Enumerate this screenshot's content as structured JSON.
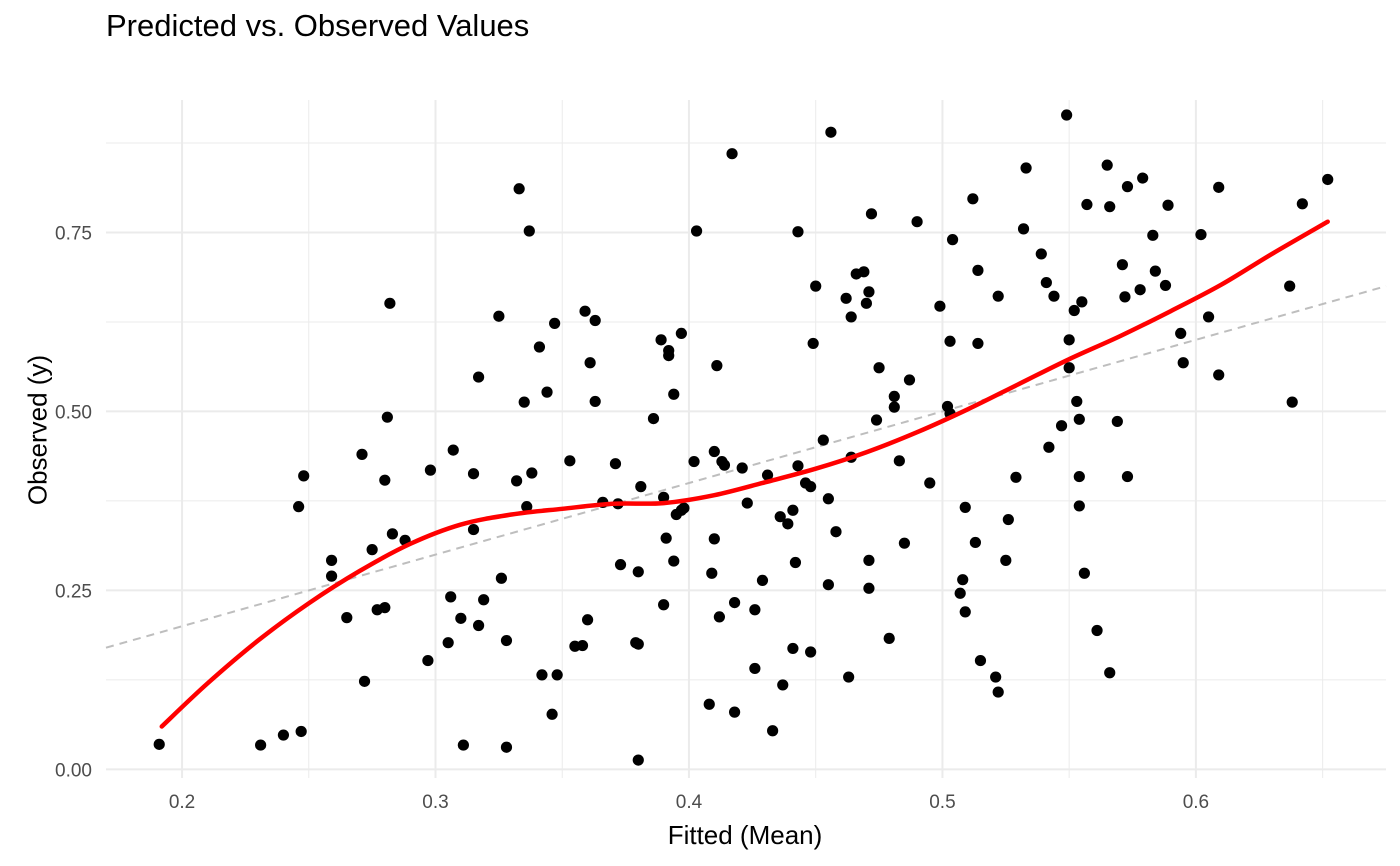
{
  "chart_data": {
    "type": "scatter",
    "title": "Predicted vs. Observed Values",
    "xlabel": "Fitted (Mean)",
    "ylabel": "Observed (y)",
    "xlim": [
      0.17,
      0.675
    ],
    "ylim": [
      -0.012,
      0.935
    ],
    "x_ticks": [
      0.2,
      0.3,
      0.4,
      0.5,
      0.6
    ],
    "x_tick_labels": [
      "0.2",
      "0.3",
      "0.4",
      "0.5",
      "0.6"
    ],
    "y_ticks": [
      0.0,
      0.25,
      0.5,
      0.75
    ],
    "y_tick_labels": [
      "0.00",
      "0.25",
      "0.50",
      "0.75"
    ],
    "grid": true,
    "colors": {
      "points": "#000000",
      "smooth": "#ff0000",
      "reference": "#bebebe",
      "grid": "#ebebeb"
    },
    "points": [
      [
        0.191,
        0.035
      ],
      [
        0.231,
        0.034
      ],
      [
        0.24,
        0.048
      ],
      [
        0.247,
        0.053
      ],
      [
        0.246,
        0.367
      ],
      [
        0.248,
        0.41
      ],
      [
        0.259,
        0.292
      ],
      [
        0.259,
        0.27
      ],
      [
        0.265,
        0.212
      ],
      [
        0.271,
        0.44
      ],
      [
        0.272,
        0.123
      ],
      [
        0.275,
        0.307
      ],
      [
        0.277,
        0.223
      ],
      [
        0.28,
        0.404
      ],
      [
        0.28,
        0.226
      ],
      [
        0.281,
        0.492
      ],
      [
        0.282,
        0.651
      ],
      [
        0.283,
        0.329
      ],
      [
        0.288,
        0.32
      ],
      [
        0.297,
        0.152
      ],
      [
        0.298,
        0.418
      ],
      [
        0.305,
        0.177
      ],
      [
        0.306,
        0.241
      ],
      [
        0.307,
        0.446
      ],
      [
        0.31,
        0.211
      ],
      [
        0.311,
        0.034
      ],
      [
        0.315,
        0.413
      ],
      [
        0.315,
        0.335
      ],
      [
        0.317,
        0.201
      ],
      [
        0.317,
        0.548
      ],
      [
        0.319,
        0.237
      ],
      [
        0.325,
        0.633
      ],
      [
        0.326,
        0.267
      ],
      [
        0.328,
        0.18
      ],
      [
        0.328,
        0.031
      ],
      [
        0.332,
        0.403
      ],
      [
        0.333,
        0.811
      ],
      [
        0.335,
        0.513
      ],
      [
        0.336,
        0.367
      ],
      [
        0.337,
        0.752
      ],
      [
        0.338,
        0.414
      ],
      [
        0.341,
        0.59
      ],
      [
        0.342,
        0.132
      ],
      [
        0.344,
        0.527
      ],
      [
        0.346,
        0.077
      ],
      [
        0.347,
        0.623
      ],
      [
        0.348,
        0.132
      ],
      [
        0.353,
        0.431
      ],
      [
        0.355,
        0.172
      ],
      [
        0.358,
        0.173
      ],
      [
        0.359,
        0.64
      ],
      [
        0.36,
        0.209
      ],
      [
        0.361,
        0.568
      ],
      [
        0.363,
        0.627
      ],
      [
        0.363,
        0.514
      ],
      [
        0.366,
        0.373
      ],
      [
        0.371,
        0.427
      ],
      [
        0.372,
        0.371
      ],
      [
        0.373,
        0.286
      ],
      [
        0.379,
        0.177
      ],
      [
        0.38,
        0.175
      ],
      [
        0.38,
        0.276
      ],
      [
        0.381,
        0.395
      ],
      [
        0.38,
        0.013
      ],
      [
        0.386,
        0.49
      ],
      [
        0.389,
        0.6
      ],
      [
        0.39,
        0.23
      ],
      [
        0.39,
        0.38
      ],
      [
        0.391,
        0.323
      ],
      [
        0.392,
        0.585
      ],
      [
        0.392,
        0.578
      ],
      [
        0.394,
        0.524
      ],
      [
        0.394,
        0.291
      ],
      [
        0.395,
        0.356
      ],
      [
        0.397,
        0.609
      ],
      [
        0.397,
        0.362
      ],
      [
        0.398,
        0.365
      ],
      [
        0.402,
        0.43
      ],
      [
        0.403,
        0.752
      ],
      [
        0.408,
        0.091
      ],
      [
        0.409,
        0.274
      ],
      [
        0.41,
        0.322
      ],
      [
        0.41,
        0.444
      ],
      [
        0.411,
        0.564
      ],
      [
        0.412,
        0.213
      ],
      [
        0.413,
        0.43
      ],
      [
        0.414,
        0.425
      ],
      [
        0.417,
        0.86
      ],
      [
        0.418,
        0.233
      ],
      [
        0.418,
        0.08
      ],
      [
        0.421,
        0.421
      ],
      [
        0.423,
        0.372
      ],
      [
        0.426,
        0.223
      ],
      [
        0.426,
        0.141
      ],
      [
        0.429,
        0.264
      ],
      [
        0.431,
        0.411
      ],
      [
        0.433,
        0.054
      ],
      [
        0.436,
        0.353
      ],
      [
        0.437,
        0.118
      ],
      [
        0.439,
        0.343
      ],
      [
        0.441,
        0.362
      ],
      [
        0.441,
        0.169
      ],
      [
        0.442,
        0.289
      ],
      [
        0.443,
        0.424
      ],
      [
        0.443,
        0.751
      ],
      [
        0.446,
        0.4
      ],
      [
        0.448,
        0.164
      ],
      [
        0.448,
        0.395
      ],
      [
        0.449,
        0.595
      ],
      [
        0.45,
        0.675
      ],
      [
        0.453,
        0.46
      ],
      [
        0.455,
        0.378
      ],
      [
        0.455,
        0.258
      ],
      [
        0.456,
        0.89
      ],
      [
        0.458,
        0.332
      ],
      [
        0.462,
        0.658
      ],
      [
        0.463,
        0.129
      ],
      [
        0.464,
        0.632
      ],
      [
        0.464,
        0.436
      ],
      [
        0.466,
        0.692
      ],
      [
        0.469,
        0.695
      ],
      [
        0.47,
        0.651
      ],
      [
        0.471,
        0.667
      ],
      [
        0.471,
        0.253
      ],
      [
        0.471,
        0.292
      ],
      [
        0.472,
        0.776
      ],
      [
        0.474,
        0.488
      ],
      [
        0.475,
        0.561
      ],
      [
        0.479,
        0.183
      ],
      [
        0.481,
        0.521
      ],
      [
        0.481,
        0.506
      ],
      [
        0.483,
        0.431
      ],
      [
        0.485,
        0.316
      ],
      [
        0.487,
        0.544
      ],
      [
        0.49,
        0.765
      ],
      [
        0.495,
        0.4
      ],
      [
        0.499,
        0.647
      ],
      [
        0.502,
        0.507
      ],
      [
        0.503,
        0.598
      ],
      [
        0.503,
        0.497
      ],
      [
        0.504,
        0.74
      ],
      [
        0.507,
        0.246
      ],
      [
        0.508,
        0.265
      ],
      [
        0.509,
        0.366
      ],
      [
        0.509,
        0.22
      ],
      [
        0.512,
        0.797
      ],
      [
        0.513,
        0.317
      ],
      [
        0.514,
        0.595
      ],
      [
        0.514,
        0.697
      ],
      [
        0.515,
        0.152
      ],
      [
        0.521,
        0.129
      ],
      [
        0.522,
        0.661
      ],
      [
        0.522,
        0.108
      ],
      [
        0.525,
        0.292
      ],
      [
        0.526,
        0.349
      ],
      [
        0.529,
        0.408
      ],
      [
        0.532,
        0.755
      ],
      [
        0.533,
        0.84
      ],
      [
        0.539,
        0.72
      ],
      [
        0.541,
        0.68
      ],
      [
        0.542,
        0.45
      ],
      [
        0.544,
        0.661
      ],
      [
        0.547,
        0.48
      ],
      [
        0.549,
        0.914
      ],
      [
        0.55,
        0.6
      ],
      [
        0.55,
        0.561
      ],
      [
        0.552,
        0.641
      ],
      [
        0.553,
        0.514
      ],
      [
        0.554,
        0.489
      ],
      [
        0.554,
        0.409
      ],
      [
        0.554,
        0.368
      ],
      [
        0.555,
        0.653
      ],
      [
        0.556,
        0.274
      ],
      [
        0.557,
        0.789
      ],
      [
        0.561,
        0.194
      ],
      [
        0.565,
        0.844
      ],
      [
        0.566,
        0.786
      ],
      [
        0.566,
        0.135
      ],
      [
        0.569,
        0.486
      ],
      [
        0.571,
        0.705
      ],
      [
        0.572,
        0.66
      ],
      [
        0.573,
        0.814
      ],
      [
        0.573,
        0.409
      ],
      [
        0.578,
        0.67
      ],
      [
        0.579,
        0.826
      ],
      [
        0.583,
        0.746
      ],
      [
        0.584,
        0.696
      ],
      [
        0.588,
        0.676
      ],
      [
        0.589,
        0.788
      ],
      [
        0.594,
        0.609
      ],
      [
        0.595,
        0.568
      ],
      [
        0.602,
        0.747
      ],
      [
        0.605,
        0.632
      ],
      [
        0.609,
        0.813
      ],
      [
        0.609,
        0.551
      ],
      [
        0.637,
        0.675
      ],
      [
        0.638,
        0.513
      ],
      [
        0.642,
        0.79
      ],
      [
        0.652,
        0.824
      ]
    ],
    "smooth": [
      [
        0.192,
        0.06
      ],
      [
        0.21,
        0.12
      ],
      [
        0.23,
        0.18
      ],
      [
        0.25,
        0.232
      ],
      [
        0.27,
        0.277
      ],
      [
        0.29,
        0.315
      ],
      [
        0.31,
        0.342
      ],
      [
        0.33,
        0.356
      ],
      [
        0.35,
        0.364
      ],
      [
        0.37,
        0.371
      ],
      [
        0.39,
        0.372
      ],
      [
        0.41,
        0.383
      ],
      [
        0.43,
        0.401
      ],
      [
        0.45,
        0.42
      ],
      [
        0.47,
        0.443
      ],
      [
        0.49,
        0.471
      ],
      [
        0.51,
        0.503
      ],
      [
        0.53,
        0.538
      ],
      [
        0.55,
        0.573
      ],
      [
        0.57,
        0.605
      ],
      [
        0.59,
        0.64
      ],
      [
        0.61,
        0.677
      ],
      [
        0.63,
        0.72
      ],
      [
        0.652,
        0.765
      ]
    ],
    "reference": [
      [
        0.17,
        0.17
      ],
      [
        0.675,
        0.675
      ]
    ]
  }
}
